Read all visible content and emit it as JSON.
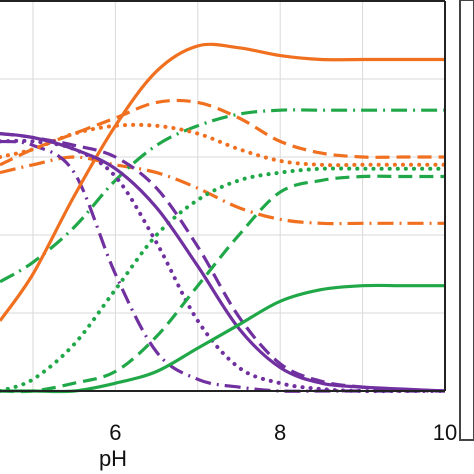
{
  "chart_data": {
    "type": "line",
    "xlabel": "pH",
    "xlim": [
      4.6,
      10
    ],
    "ylim": [
      0,
      1
    ],
    "x_ticks": [
      "6",
      "8",
      "10"
    ],
    "x_tick_values": [
      6,
      8,
      10
    ],
    "grid": true,
    "colors": {
      "orange": "#f07020",
      "purple": "#7030a0",
      "green": "#20a848"
    },
    "series": [
      {
        "color": "orange",
        "style": "solid",
        "x": [
          4.6,
          5.0,
          5.5,
          6.0,
          6.5,
          7.0,
          7.5,
          8.0,
          8.5,
          9.0,
          9.5,
          10.0
        ],
        "y": [
          0.18,
          0.3,
          0.5,
          0.68,
          0.82,
          0.885,
          0.88,
          0.86,
          0.85,
          0.85,
          0.85,
          0.85
        ]
      },
      {
        "color": "orange",
        "style": "dashed",
        "x": [
          4.6,
          5.0,
          5.5,
          6.0,
          6.5,
          7.0,
          7.5,
          8.0,
          8.5,
          9.0,
          9.5,
          10.0
        ],
        "y": [
          0.58,
          0.62,
          0.66,
          0.7,
          0.74,
          0.74,
          0.7,
          0.64,
          0.61,
          0.6,
          0.6,
          0.6
        ]
      },
      {
        "color": "orange",
        "style": "dotted",
        "x": [
          4.6,
          5.0,
          5.5,
          6.0,
          6.5,
          7.0,
          7.5,
          8.0,
          8.5,
          9.0,
          9.5,
          10.0
        ],
        "y": [
          0.6,
          0.62,
          0.66,
          0.68,
          0.68,
          0.66,
          0.62,
          0.59,
          0.58,
          0.58,
          0.58,
          0.58
        ]
      },
      {
        "color": "orange",
        "style": "dashdot",
        "x": [
          4.6,
          5.0,
          5.5,
          6.0,
          6.5,
          7.0,
          7.5,
          8.0,
          8.5,
          9.0,
          9.5,
          10.0
        ],
        "y": [
          0.56,
          0.58,
          0.6,
          0.58,
          0.56,
          0.52,
          0.47,
          0.44,
          0.43,
          0.43,
          0.43,
          0.43
        ]
      },
      {
        "color": "purple",
        "style": "solid",
        "x": [
          4.6,
          5.0,
          5.5,
          6.0,
          6.5,
          7.0,
          7.5,
          8.0,
          8.5,
          9.0,
          9.5,
          10.0
        ],
        "y": [
          0.66,
          0.65,
          0.62,
          0.57,
          0.47,
          0.32,
          0.16,
          0.06,
          0.02,
          0.01,
          0.005,
          0.0
        ]
      },
      {
        "color": "purple",
        "style": "dashed",
        "x": [
          4.6,
          5.0,
          5.5,
          6.0,
          6.5,
          7.0,
          7.5,
          8.0,
          8.5,
          9.0,
          9.5,
          10.0
        ],
        "y": [
          0.66,
          0.65,
          0.63,
          0.6,
          0.52,
          0.37,
          0.19,
          0.07,
          0.025,
          0.01,
          0.004,
          0.0
        ]
      },
      {
        "color": "purple",
        "style": "dotted",
        "x": [
          4.6,
          5.0,
          5.5,
          6.0,
          6.5,
          7.0,
          7.5,
          8.0,
          8.5,
          9.0,
          9.5,
          10.0
        ],
        "y": [
          0.64,
          0.64,
          0.62,
          0.55,
          0.38,
          0.18,
          0.06,
          0.02,
          0.005,
          0.0,
          0.0,
          0.0
        ]
      },
      {
        "color": "purple",
        "style": "dashdot",
        "x": [
          4.6,
          5.0,
          5.5,
          6.0,
          6.5,
          7.0,
          7.5,
          8.0,
          8.5,
          9.0,
          9.5,
          10.0
        ],
        "y": [
          0.64,
          0.63,
          0.56,
          0.3,
          0.1,
          0.03,
          0.01,
          0.0,
          0.0,
          0.0,
          0.0,
          0.0
        ]
      },
      {
        "color": "green",
        "style": "solid",
        "x": [
          4.6,
          5.0,
          5.5,
          6.0,
          6.5,
          7.0,
          7.5,
          8.0,
          8.5,
          9.0,
          9.5,
          10.0
        ],
        "y": [
          0.0,
          0.0,
          0.0,
          0.02,
          0.05,
          0.11,
          0.17,
          0.23,
          0.26,
          0.27,
          0.27,
          0.27
        ]
      },
      {
        "color": "green",
        "style": "dashed",
        "x": [
          4.6,
          5.0,
          5.5,
          6.0,
          6.5,
          7.0,
          7.5,
          8.0,
          8.5,
          9.0,
          9.5,
          10.0
        ],
        "y": [
          0.0,
          0.0,
          0.02,
          0.05,
          0.14,
          0.27,
          0.4,
          0.51,
          0.54,
          0.55,
          0.55,
          0.55
        ]
      },
      {
        "color": "green",
        "style": "dotted",
        "x": [
          4.6,
          5.0,
          5.5,
          6.0,
          6.5,
          7.0,
          7.5,
          8.0,
          8.5,
          9.0,
          9.5,
          10.0
        ],
        "y": [
          0.0,
          0.03,
          0.12,
          0.26,
          0.4,
          0.49,
          0.54,
          0.56,
          0.57,
          0.57,
          0.57,
          0.57
        ]
      },
      {
        "color": "green",
        "style": "dashdot",
        "x": [
          4.6,
          5.0,
          5.5,
          6.0,
          6.5,
          7.0,
          7.5,
          8.0,
          8.5,
          9.0,
          9.5,
          10.0
        ],
        "y": [
          0.28,
          0.33,
          0.42,
          0.54,
          0.63,
          0.68,
          0.71,
          0.72,
          0.72,
          0.72,
          0.72,
          0.72
        ]
      }
    ]
  }
}
